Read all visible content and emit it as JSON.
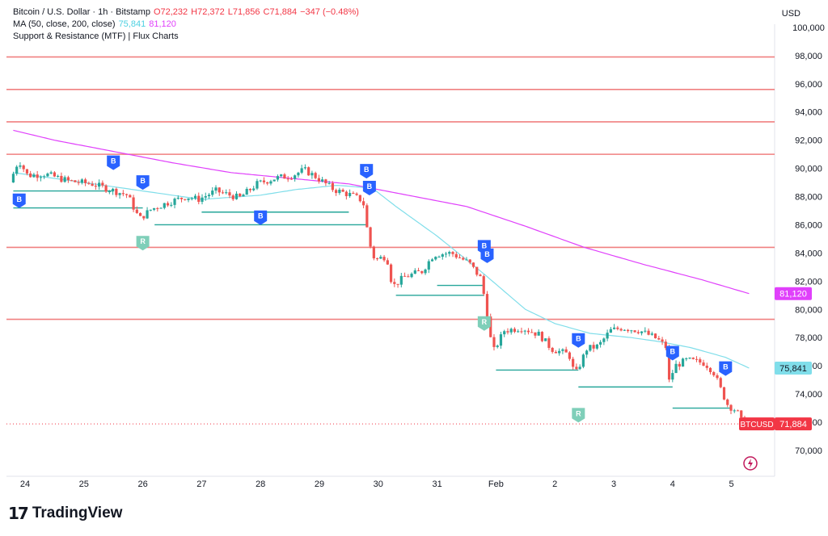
{
  "legend": {
    "line1": {
      "symbol": "Bitcoin / U.S. Dollar · 1h · Bitstamp",
      "open": "O72,232",
      "high": "H72,372",
      "low": "L71,856",
      "close": "C71,884",
      "change": "−347 (−0.48%)"
    },
    "line2": {
      "label": "MA (50, close, 200, close)",
      "ma50": "75,841",
      "ma200": "81,120"
    },
    "line3": {
      "label": "Support & Resistance (MTF) | Flux Charts"
    }
  },
  "currency": "USD",
  "brand": {
    "mark": "17",
    "name": "TradingView"
  },
  "colors": {
    "up": "#26a69a",
    "down": "#ef5350",
    "ma50": "#80deea",
    "ma200": "#e040fb",
    "resistance": "#f08080",
    "support": "#26a69a",
    "price": "#f23645",
    "marker_b": "#2962ff",
    "marker_r": "#7fcfb9"
  },
  "chart_data": {
    "type": "candlestick",
    "x_tick_labels": [
      "24",
      "25",
      "26",
      "27",
      "28",
      "29",
      "30",
      "31",
      "Feb",
      "2",
      "3",
      "4",
      "5"
    ],
    "y_tick_labels": [
      "70,000",
      "72,000",
      "74,000",
      "76,000",
      "78,000",
      "80,000",
      "82,000",
      "84,000",
      "86,000",
      "88,000",
      "90,000",
      "92,000",
      "94,000",
      "96,000",
      "98,000",
      "100,000"
    ],
    "ylim": [
      68200,
      100600
    ],
    "xlim_days": [
      23.8,
      36.8
    ],
    "price_path": [
      [
        23.8,
        89000
      ],
      [
        23.95,
        90600
      ],
      [
        24.1,
        89500
      ],
      [
        24.4,
        89600
      ],
      [
        24.8,
        89100
      ],
      [
        25.2,
        88900
      ],
      [
        25.5,
        88500
      ],
      [
        25.8,
        88100
      ],
      [
        26.0,
        86400
      ],
      [
        26.2,
        87100
      ],
      [
        26.5,
        87600
      ],
      [
        26.8,
        88000
      ],
      [
        27.0,
        87800
      ],
      [
        27.3,
        88400
      ],
      [
        27.7,
        87900
      ],
      [
        28.0,
        88900
      ],
      [
        28.3,
        89300
      ],
      [
        28.6,
        89500
      ],
      [
        28.8,
        89900
      ],
      [
        29.0,
        89400
      ],
      [
        29.3,
        88500
      ],
      [
        29.6,
        88100
      ],
      [
        29.8,
        87700
      ],
      [
        29.9,
        84800
      ],
      [
        30.0,
        83500
      ],
      [
        30.2,
        83800
      ],
      [
        30.3,
        81600
      ],
      [
        30.5,
        82300
      ],
      [
        30.8,
        82700
      ],
      [
        31.0,
        83900
      ],
      [
        31.3,
        84000
      ],
      [
        31.6,
        83300
      ],
      [
        31.8,
        82200
      ],
      [
        31.9,
        80000
      ],
      [
        32.0,
        76900
      ],
      [
        32.2,
        78500
      ],
      [
        32.5,
        78700
      ],
      [
        32.8,
        78200
      ],
      [
        33.0,
        77200
      ],
      [
        33.3,
        76800
      ],
      [
        33.4,
        75300
      ],
      [
        33.6,
        77200
      ],
      [
        33.8,
        77400
      ],
      [
        34.0,
        78500
      ],
      [
        34.2,
        78700
      ],
      [
        34.5,
        78500
      ],
      [
        34.8,
        77900
      ],
      [
        34.95,
        77300
      ],
      [
        35.0,
        74900
      ],
      [
        35.1,
        76000
      ],
      [
        35.3,
        76400
      ],
      [
        35.6,
        76200
      ],
      [
        35.75,
        75600
      ],
      [
        35.9,
        74100
      ],
      [
        36.0,
        73200
      ],
      [
        36.15,
        72800
      ],
      [
        36.25,
        71884
      ]
    ],
    "ma50": [
      [
        23.8,
        89700
      ],
      [
        25.0,
        89000
      ],
      [
        26.0,
        88400
      ],
      [
        27.0,
        87800
      ],
      [
        28.0,
        88100
      ],
      [
        28.6,
        88500
      ],
      [
        29.3,
        88800
      ],
      [
        29.9,
        88600
      ],
      [
        30.3,
        87300
      ],
      [
        31.0,
        85200
      ],
      [
        31.8,
        82500
      ],
      [
        32.5,
        80000
      ],
      [
        33.0,
        79000
      ],
      [
        33.6,
        78300
      ],
      [
        34.3,
        78000
      ],
      [
        34.8,
        77700
      ],
      [
        35.3,
        77300
      ],
      [
        35.9,
        76600
      ],
      [
        36.3,
        75841
      ]
    ],
    "ma200": [
      [
        23.8,
        92700
      ],
      [
        24.5,
        92000
      ],
      [
        25.5,
        91200
      ],
      [
        26.5,
        90400
      ],
      [
        27.5,
        89700
      ],
      [
        28.5,
        89300
      ],
      [
        29.5,
        88900
      ],
      [
        30.5,
        88100
      ],
      [
        31.5,
        87300
      ],
      [
        32.5,
        85900
      ],
      [
        33.5,
        84400
      ],
      [
        34.5,
        83200
      ],
      [
        35.5,
        82100
      ],
      [
        36.3,
        81120
      ]
    ],
    "resistance_levels": [
      97900,
      95600,
      93300,
      91000,
      84400,
      79300
    ],
    "support_segments": [
      {
        "x0": 23.8,
        "x1": 25.5,
        "y": 88400
      },
      {
        "x0": 23.8,
        "x1": 26.0,
        "y": 87200
      },
      {
        "x0": 27.0,
        "x1": 29.5,
        "y": 86900
      },
      {
        "x0": 26.2,
        "x1": 29.8,
        "y": 86000
      },
      {
        "x0": 31.0,
        "x1": 31.8,
        "y": 81700
      },
      {
        "x0": 30.3,
        "x1": 31.8,
        "y": 81000
      },
      {
        "x0": 32.0,
        "x1": 33.4,
        "y": 75700
      },
      {
        "x0": 33.4,
        "x1": 35.0,
        "y": 74500
      },
      {
        "x0": 35.0,
        "x1": 36.0,
        "y": 73000
      }
    ],
    "markers": [
      {
        "x": 23.9,
        "y": 87700,
        "label": "B"
      },
      {
        "x": 25.5,
        "y": 90400,
        "label": "B"
      },
      {
        "x": 26.0,
        "y": 89000,
        "label": "B"
      },
      {
        "x": 26.0,
        "y": 84700,
        "label": "R"
      },
      {
        "x": 28.0,
        "y": 86500,
        "label": "B"
      },
      {
        "x": 29.8,
        "y": 89800,
        "label": "B"
      },
      {
        "x": 29.85,
        "y": 88600,
        "label": "B"
      },
      {
        "x": 31.8,
        "y": 84400,
        "label": "B"
      },
      {
        "x": 31.85,
        "y": 83800,
        "label": "B"
      },
      {
        "x": 31.8,
        "y": 79000,
        "label": "R"
      },
      {
        "x": 33.4,
        "y": 77800,
        "label": "B"
      },
      {
        "x": 33.4,
        "y": 72500,
        "label": "R"
      },
      {
        "x": 35.0,
        "y": 76900,
        "label": "B"
      },
      {
        "x": 35.9,
        "y": 75800,
        "label": "B"
      }
    ],
    "price_labels": [
      {
        "value": 81120,
        "text": "81,120",
        "color": "#e040fb"
      },
      {
        "value": 75841,
        "text": "75,841",
        "color": "#80deea"
      },
      {
        "value": 71884,
        "text": "71,884",
        "color": "#f23645",
        "tag": "BTCUSD"
      }
    ]
  }
}
